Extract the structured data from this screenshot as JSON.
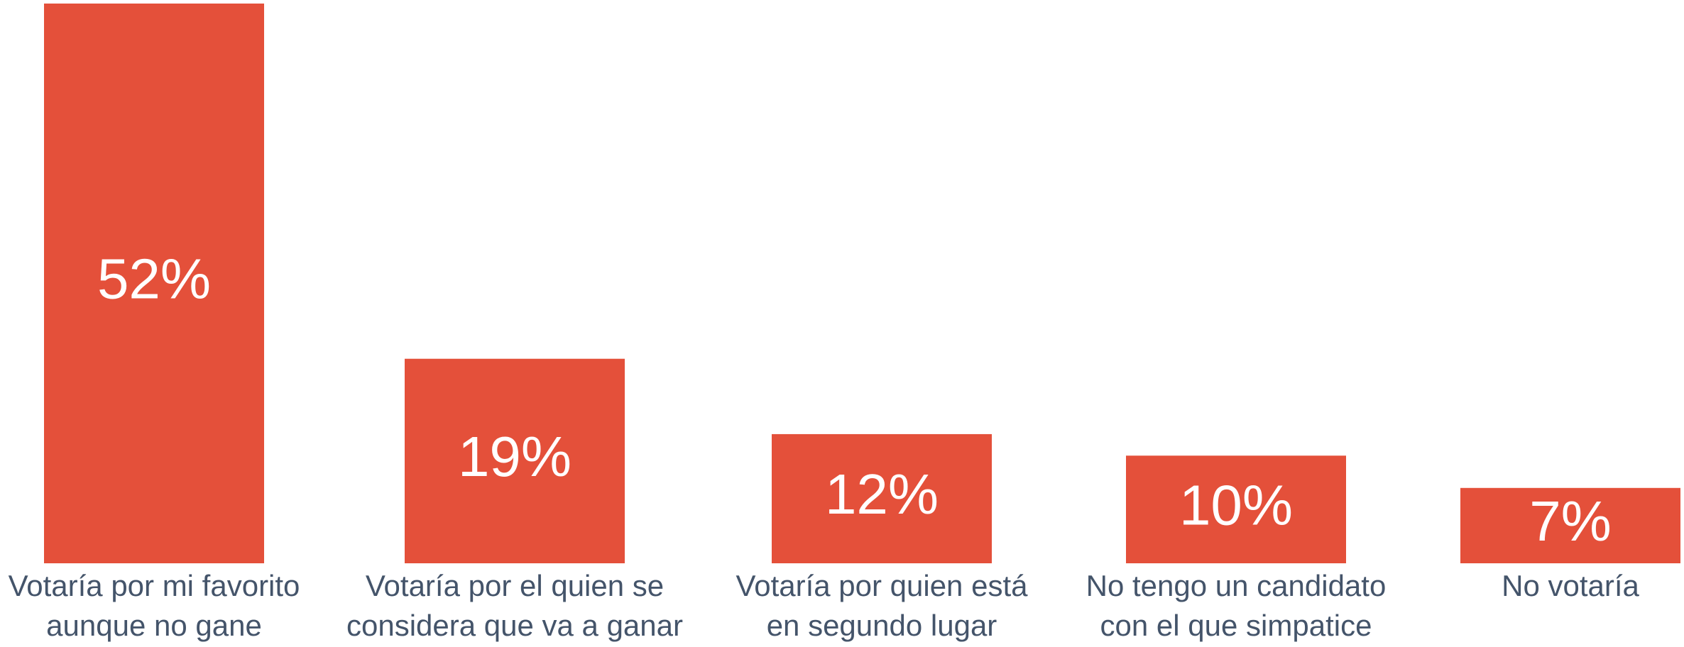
{
  "chart_data": {
    "type": "bar",
    "categories": [
      [
        "Votaría por mi favorito",
        "aunque no gane"
      ],
      [
        "Votaría por el quien se",
        "considera que va a ganar"
      ],
      [
        "Votaría por quien está",
        "en segundo lugar"
      ],
      [
        "No tengo un candidato",
        "con el que simpatice"
      ],
      [
        "No votaría"
      ]
    ],
    "values": [
      52,
      19,
      12,
      10,
      7
    ],
    "value_labels": [
      "52%",
      "19%",
      "12%",
      "10%",
      "7%"
    ],
    "color": "#e4503a",
    "ylim": [
      0,
      52
    ]
  }
}
